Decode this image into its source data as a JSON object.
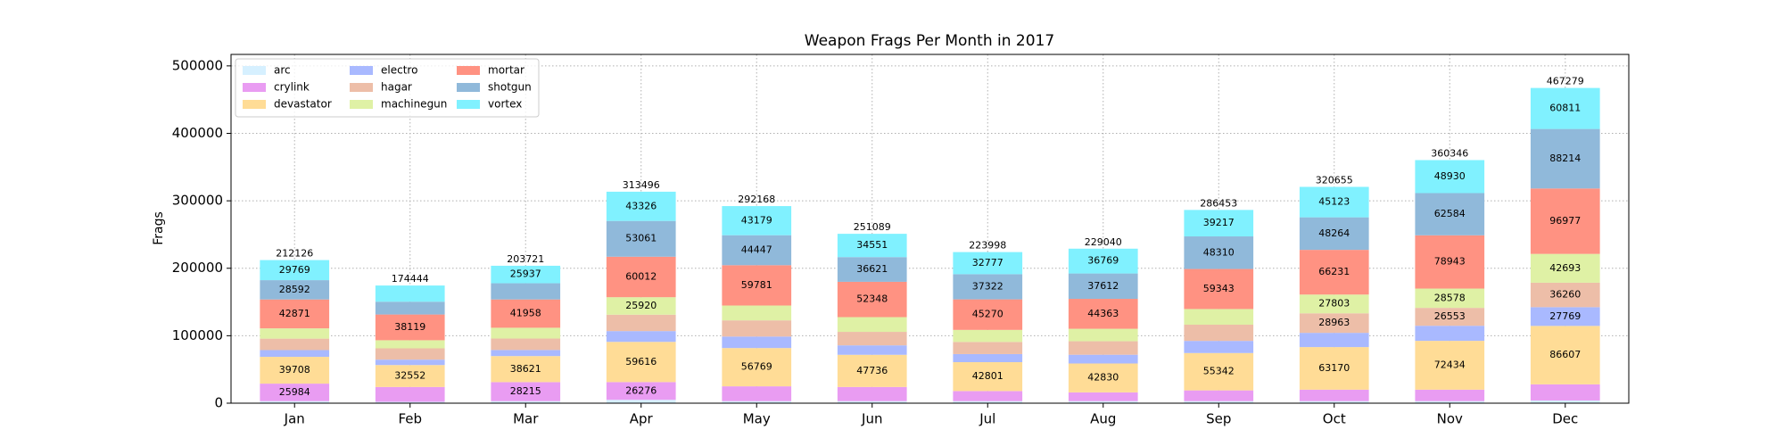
{
  "chart_data": {
    "type": "stacked_bar",
    "title": "Weapon Frags Per Month in 2017",
    "y_label": "Frags",
    "categories": [
      "Jan",
      "Feb",
      "Mar",
      "Apr",
      "May",
      "Jun",
      "Jul",
      "Aug",
      "Sep",
      "Oct",
      "Nov",
      "Dec"
    ],
    "series": [
      {
        "name": "arc",
        "color": "#d6f0ff",
        "values": [
          3000,
          2000,
          3000,
          5000,
          3000,
          3000,
          3000,
          3000,
          3000,
          3000,
          3000,
          4000
        ]
      },
      {
        "name": "crylink",
        "color": "#e99cf2",
        "values": [
          25984,
          22000,
          28215,
          26276,
          22000,
          21000,
          15000,
          13000,
          16000,
          17000,
          17000,
          23948
        ]
      },
      {
        "name": "devastator",
        "color": "#ffdc96",
        "values": [
          39708,
          32552,
          38621,
          59616,
          56769,
          47736,
          42801,
          42830,
          55342,
          63170,
          72434,
          86607
        ]
      },
      {
        "name": "electro",
        "color": "#a9b9ff",
        "values": [
          10000,
          8000,
          9000,
          16000,
          17000,
          14000,
          12000,
          13000,
          18000,
          21101,
          22324,
          27769
        ]
      },
      {
        "name": "hagar",
        "color": "#edbea8",
        "values": [
          17000,
          16773,
          17000,
          24285,
          24000,
          20000,
          18000,
          20000,
          24000,
          28963,
          26553,
          36260
        ]
      },
      {
        "name": "machinegun",
        "color": "#dff1a5",
        "values": [
          15202,
          12000,
          15990,
          25920,
          21992,
          21833,
          17828,
          18466,
          23241,
          27803,
          28578,
          42693
        ]
      },
      {
        "name": "mortar",
        "color": "#ff9282",
        "values": [
          42871,
          38119,
          41958,
          60012,
          59781,
          52348,
          45270,
          44363,
          59343,
          66231,
          78943,
          96977
        ]
      },
      {
        "name": "shotgun",
        "color": "#90b9da",
        "values": [
          28592,
          19000,
          24000,
          53061,
          44447,
          36621,
          37322,
          37612,
          48310,
          48264,
          62584,
          88214
        ]
      },
      {
        "name": "vortex",
        "color": "#80f1ff",
        "values": [
          29769,
          24000,
          25937,
          43326,
          43179,
          34551,
          32777,
          36769,
          39217,
          45123,
          48930,
          60811
        ]
      }
    ],
    "totals": [
      212126,
      174444,
      203721,
      313496,
      292168,
      251089,
      223998,
      229040,
      286453,
      320655,
      360346,
      467279
    ],
    "ylim": [
      0,
      517000
    ],
    "yticks": [
      0,
      100000,
      200000,
      300000,
      400000,
      500000
    ],
    "grid": true,
    "legend": "upper left"
  }
}
